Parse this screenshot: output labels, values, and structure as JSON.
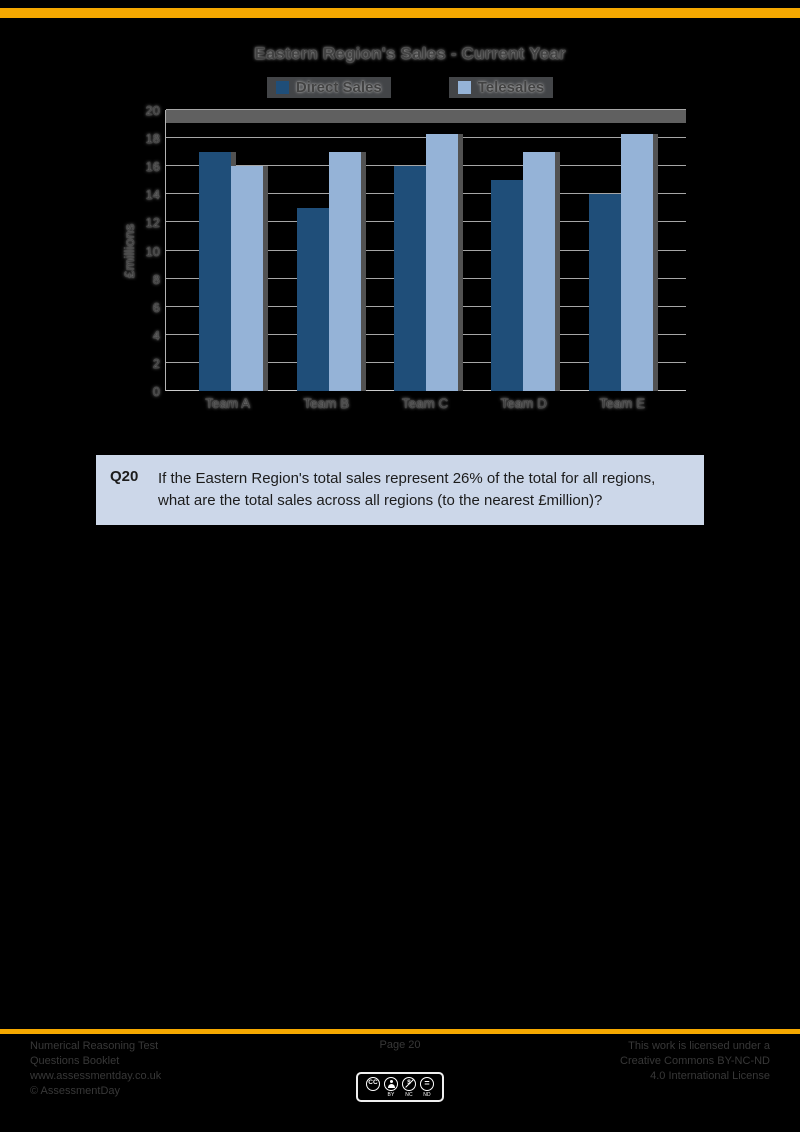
{
  "page": {
    "background": "#000000",
    "accent_color": "#F5A800"
  },
  "chart_data": {
    "type": "bar",
    "title": "Eastern Region's Sales - Current Year",
    "categories": [
      "Team A",
      "Team B",
      "Team C",
      "Team D",
      "Team E"
    ],
    "series": [
      {
        "name": "Direct Sales",
        "color": "#1F4E79",
        "values": [
          17,
          13,
          16,
          15,
          14
        ]
      },
      {
        "name": "Telesales",
        "color": "#95B3D7",
        "values": [
          16,
          17,
          18.3,
          17,
          18.3
        ]
      }
    ],
    "xlabel": "",
    "ylabel": "£millions",
    "ylim": [
      0,
      20
    ],
    "ytick_step": 2,
    "grid": true,
    "legend_position": "top-center"
  },
  "question": {
    "id": "Q20",
    "text": "If the Eastern Region's total sales represent 26% of the total for all regions, what are the total sales across all regions (to the nearest £million)?"
  },
  "footer": {
    "left_lines": [
      "Numerical Reasoning Test",
      "Questions Booklet",
      "www.assessmentday.co.uk",
      "© AssessmentDay"
    ],
    "center_text": "Page 20",
    "right_lines": [
      "This work is licensed under a",
      "Creative Commons BY-NC-ND",
      "4.0 International License"
    ],
    "license": {
      "cc": "CC",
      "labels": [
        "BY",
        "NC",
        "ND"
      ]
    }
  }
}
